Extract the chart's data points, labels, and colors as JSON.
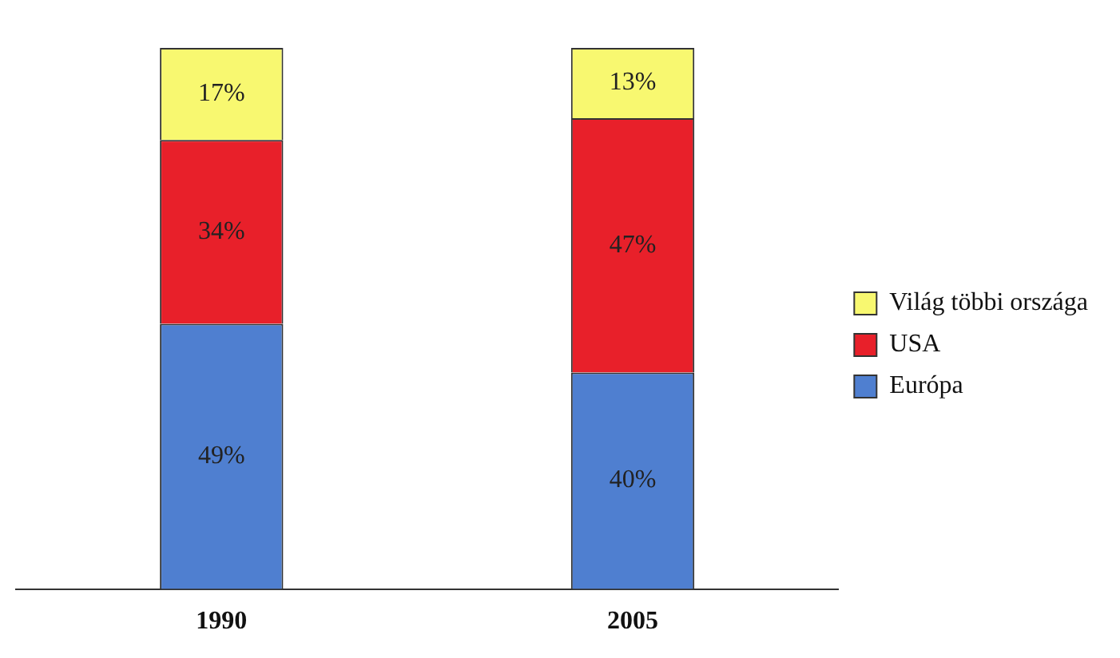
{
  "chart_data": {
    "type": "bar",
    "stacked": true,
    "categories": [
      "1990",
      "2005"
    ],
    "series": [
      {
        "name": "Európa",
        "color": "#4f7fd0",
        "values": [
          49,
          40
        ],
        "value_labels": [
          "49%",
          "40%"
        ]
      },
      {
        "name": "USA",
        "color": "#e8202a",
        "values": [
          34,
          47
        ],
        "value_labels": [
          "34%",
          "47%"
        ]
      },
      {
        "name": "Világ többi országa",
        "color": "#f8f870",
        "values": [
          17,
          13
        ],
        "value_labels": [
          "17%",
          "13%"
        ]
      }
    ],
    "legend": "right",
    "grid": false,
    "tick_labels": "x"
  }
}
